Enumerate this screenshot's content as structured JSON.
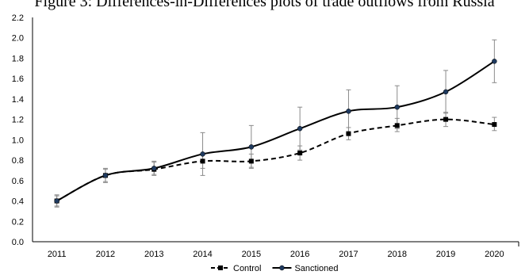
{
  "chart_data": {
    "type": "line",
    "title": "Figure 3: Differences-in-Differences plots of trade outflows from Russia",
    "xlabel": "",
    "ylabel": "",
    "x": [
      "2011",
      "2012",
      "2013",
      "2014",
      "2015",
      "2016",
      "2017",
      "2018",
      "2019",
      "2020"
    ],
    "ylim": [
      0,
      2.2
    ],
    "yticks": [
      "0.0",
      "0.2",
      "0.4",
      "0.6",
      "0.8",
      "1.0",
      "1.2",
      "1.4",
      "1.6",
      "1.8",
      "2.0",
      "2.2"
    ],
    "grid": false,
    "legend_position": "bottom",
    "series": [
      {
        "name": "Control",
        "style": "dashed",
        "marker": "square",
        "color": "#000000",
        "values": [
          0.4,
          0.65,
          0.71,
          0.79,
          0.79,
          0.87,
          1.06,
          1.14,
          1.2,
          1.15
        ],
        "error_low": [
          0.35,
          0.58,
          0.65,
          0.72,
          0.73,
          0.8,
          1.0,
          1.08,
          1.13,
          1.09
        ],
        "error_high": [
          0.45,
          0.71,
          0.78,
          0.86,
          0.86,
          0.94,
          1.12,
          1.21,
          1.27,
          1.22
        ]
      },
      {
        "name": "Sanctioned",
        "style": "solid",
        "marker": "circle",
        "color": "#000000",
        "marker_color": "#1f3a5f",
        "values": [
          0.4,
          0.65,
          0.72,
          0.86,
          0.93,
          1.11,
          1.28,
          1.32,
          1.47,
          1.77
        ],
        "error_low": [
          0.34,
          0.59,
          0.66,
          0.65,
          0.72,
          0.9,
          1.07,
          1.11,
          1.26,
          1.56
        ],
        "error_high": [
          0.46,
          0.72,
          0.79,
          1.07,
          1.14,
          1.32,
          1.49,
          1.53,
          1.68,
          1.98
        ]
      }
    ]
  }
}
